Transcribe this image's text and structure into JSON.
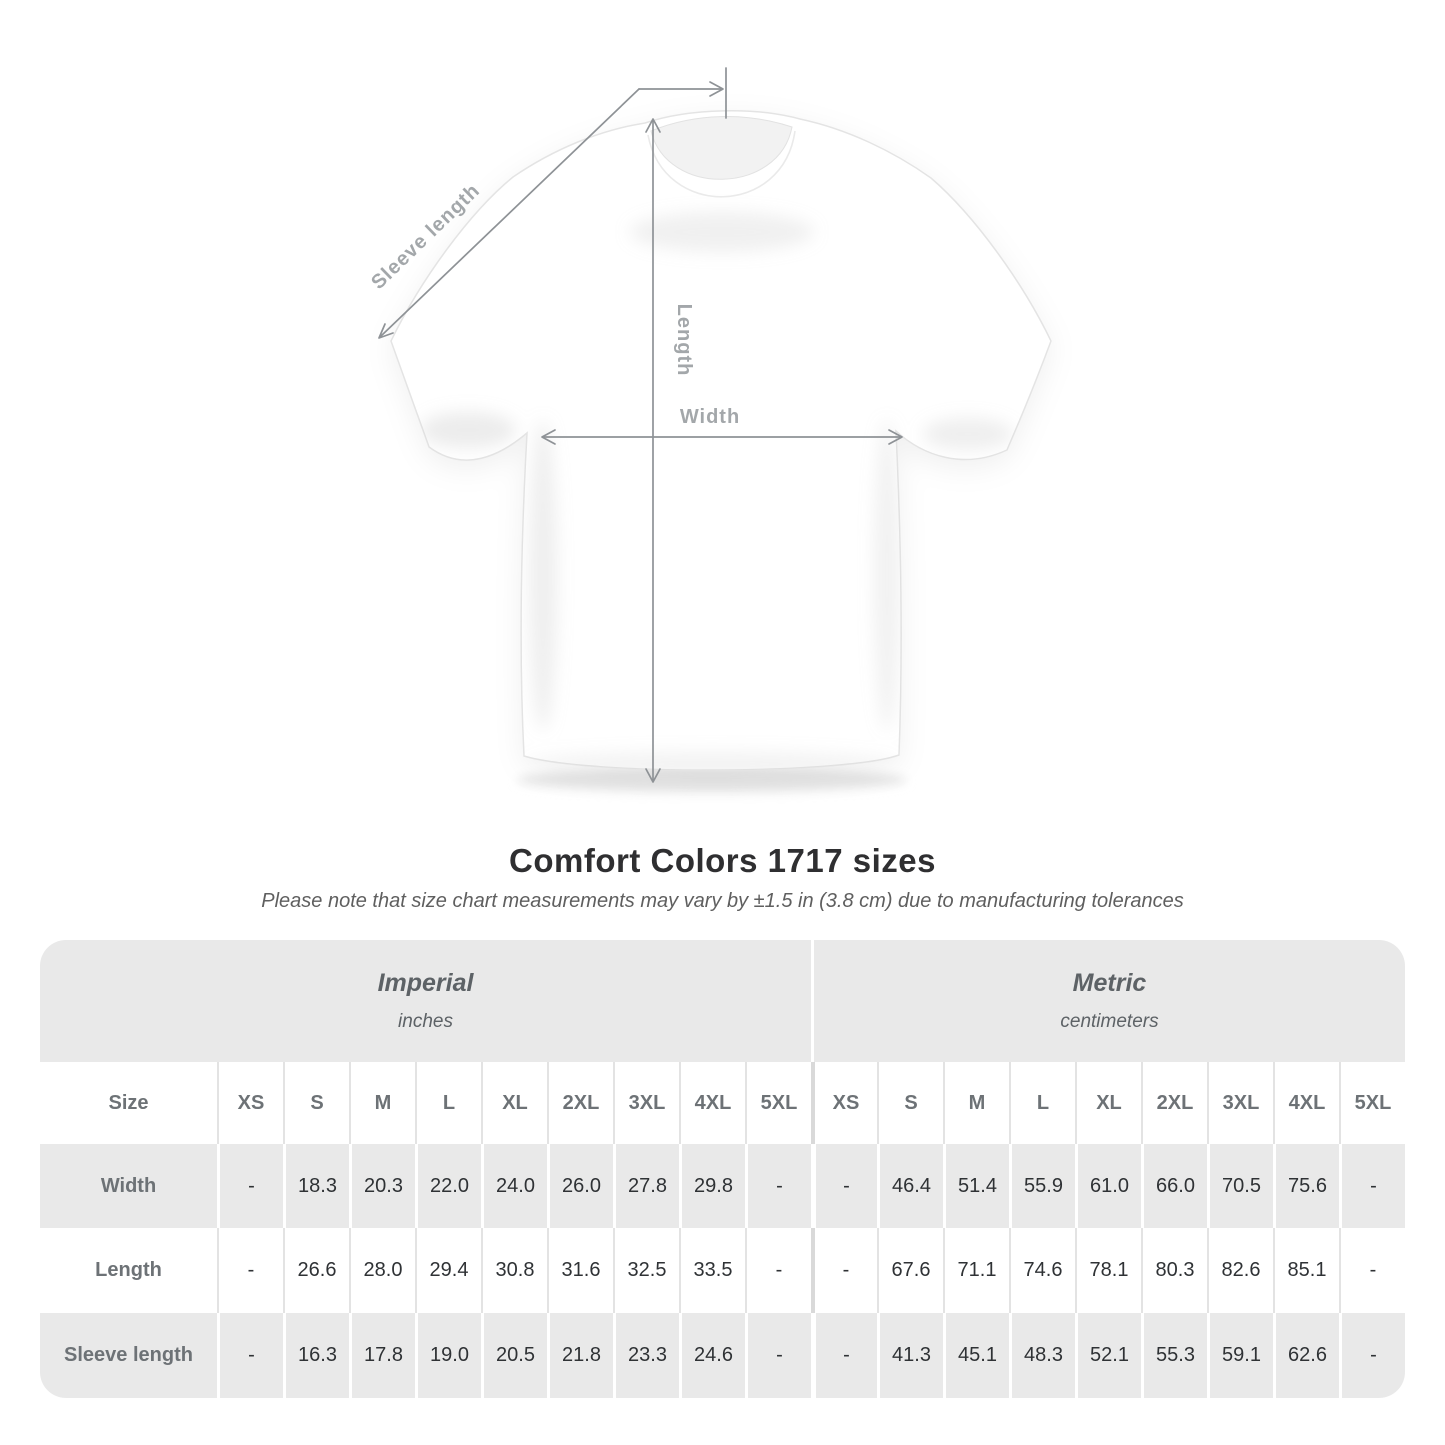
{
  "page": {
    "background": "#ffffff"
  },
  "diagram": {
    "sleeve_label": "Sleeve length",
    "length_label": "Length",
    "width_label": "Width",
    "line_color": "#8e9296",
    "label_color": "#a3a7aa"
  },
  "chart_data": {
    "type": "table",
    "title": "Comfort Colors 1717 sizes",
    "note": "Please note that size chart measurements may vary by ±1.5 in (3.8 cm) due to manufacturing tolerances",
    "corner_label": "Size",
    "sections": [
      {
        "system": "Imperial",
        "unit": "inches"
      },
      {
        "system": "Metric",
        "unit": "centimeters"
      }
    ],
    "sizes": [
      "XS",
      "S",
      "M",
      "L",
      "XL",
      "2XL",
      "3XL",
      "4XL",
      "5XL"
    ],
    "rows": [
      {
        "label": "Width",
        "imperial": [
          "-",
          "18.3",
          "20.3",
          "22.0",
          "24.0",
          "26.0",
          "27.8",
          "29.8",
          "-"
        ],
        "metric": [
          "-",
          "46.4",
          "51.4",
          "55.9",
          "61.0",
          "66.0",
          "70.5",
          "75.6",
          "-"
        ]
      },
      {
        "label": "Length",
        "imperial": [
          "-",
          "26.6",
          "28.0",
          "29.4",
          "30.8",
          "31.6",
          "32.5",
          "33.5",
          "-"
        ],
        "metric": [
          "-",
          "67.6",
          "71.1",
          "74.6",
          "78.1",
          "80.3",
          "82.6",
          "85.1",
          "-"
        ]
      },
      {
        "label": "Sleeve length",
        "imperial": [
          "-",
          "16.3",
          "17.8",
          "19.0",
          "20.5",
          "21.8",
          "23.3",
          "24.6",
          "-"
        ],
        "metric": [
          "-",
          "41.3",
          "45.1",
          "48.3",
          "52.1",
          "55.3",
          "59.1",
          "62.6",
          "-"
        ]
      }
    ],
    "colors": {
      "row_shade": "#e9e9e9",
      "header_text": "#6d7276",
      "value_text": "#2f3235"
    }
  }
}
